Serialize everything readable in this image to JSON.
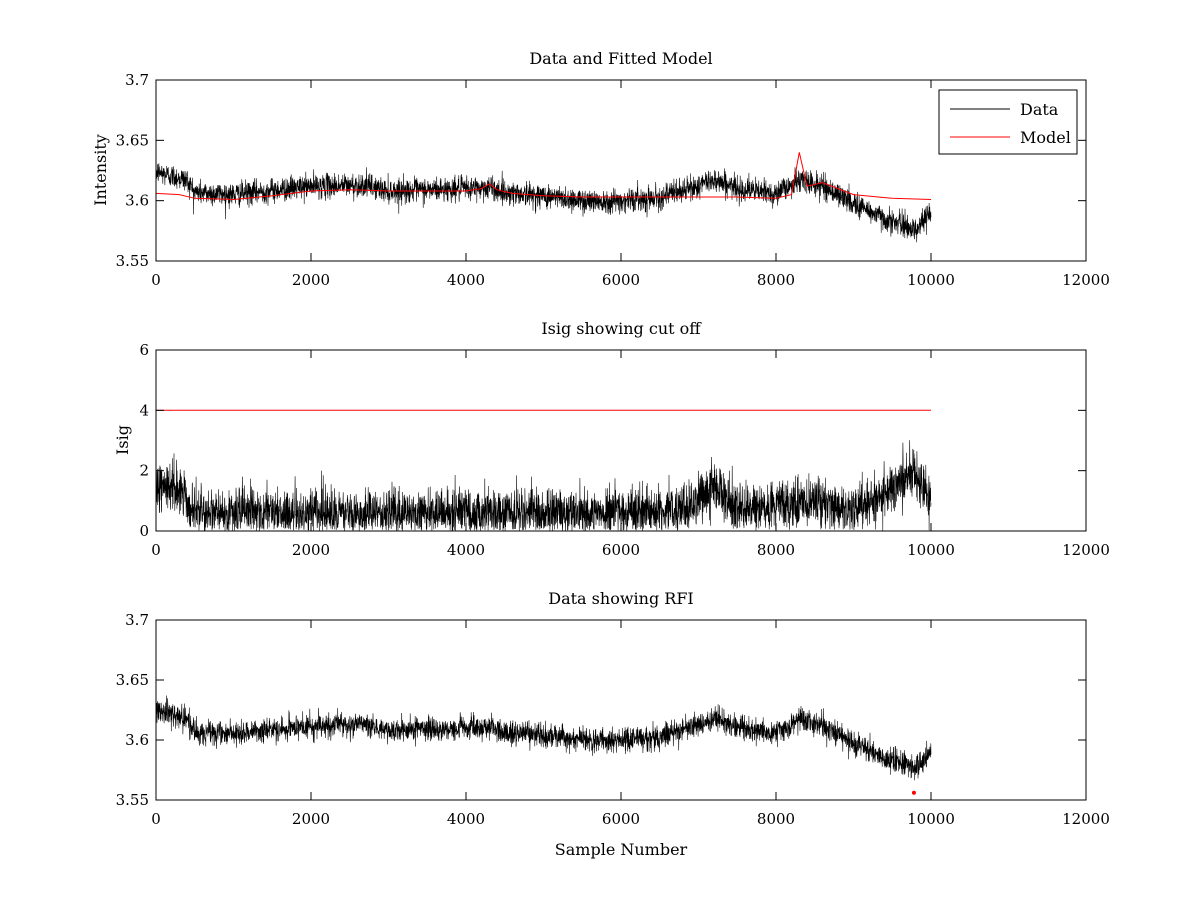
{
  "figure": {
    "background": "#ffffff"
  },
  "chart_data": [
    {
      "type": "line",
      "title": "Data and Fitted Model",
      "xlabel": "",
      "ylabel": "Intensity",
      "xlim": [
        0,
        12000
      ],
      "ylim": [
        3.55,
        3.7
      ],
      "xticks": [
        0,
        2000,
        4000,
        6000,
        8000,
        10000,
        12000
      ],
      "xtick_labels": [
        "0",
        "2000",
        "4000",
        "6000",
        "8000",
        "10000",
        "12000"
      ],
      "yticks": [
        3.55,
        3.6,
        3.65,
        3.7
      ],
      "ytick_labels": [
        "3.55",
        "3.6",
        "3.65",
        "3.7"
      ],
      "grid": false,
      "legend": {
        "placement": "top-right",
        "entries": [
          "Data",
          "Model"
        ]
      },
      "series": [
        {
          "name": "Data",
          "color": "#000000",
          "kind": "noisy",
          "x": [
            0,
            400,
            500,
            1000,
            2000,
            2700,
            3000,
            4000,
            4300,
            4500,
            5000,
            5500,
            6000,
            6500,
            7000,
            7200,
            7500,
            8000,
            8300,
            8600,
            9000,
            9400,
            9800,
            10000
          ],
          "center": [
            3.624,
            3.617,
            3.607,
            3.605,
            3.612,
            3.613,
            3.608,
            3.61,
            3.611,
            3.607,
            3.604,
            3.6,
            3.6,
            3.603,
            3.612,
            3.618,
            3.61,
            3.606,
            3.617,
            3.612,
            3.598,
            3.585,
            3.576,
            3.59
          ],
          "noise": 0.009
        },
        {
          "name": "Model",
          "color": "#ff0000",
          "kind": "line",
          "x": [
            0,
            300,
            500,
            1000,
            1500,
            2000,
            2500,
            3000,
            3500,
            4000,
            4200,
            4300,
            4400,
            4600,
            5000,
            5500,
            6000,
            6500,
            7000,
            7500,
            8000,
            8200,
            8300,
            8400,
            8600,
            8800,
            9000,
            9500,
            10000
          ],
          "y": [
            3.606,
            3.605,
            3.602,
            3.601,
            3.604,
            3.608,
            3.609,
            3.608,
            3.608,
            3.608,
            3.61,
            3.614,
            3.609,
            3.606,
            3.604,
            3.603,
            3.603,
            3.603,
            3.603,
            3.603,
            3.602,
            3.605,
            3.64,
            3.612,
            3.615,
            3.61,
            3.605,
            3.602,
            3.601
          ]
        }
      ]
    },
    {
      "type": "line",
      "title": "Isig showing cut off",
      "xlabel": "",
      "ylabel": "Isig",
      "xlim": [
        0,
        12000
      ],
      "ylim": [
        0,
        6
      ],
      "xticks": [
        0,
        2000,
        4000,
        6000,
        8000,
        10000,
        12000
      ],
      "xtick_labels": [
        "0",
        "2000",
        "4000",
        "6000",
        "8000",
        "10000",
        "12000"
      ],
      "yticks": [
        0,
        2,
        4,
        6
      ],
      "ytick_labels": [
        "0",
        "2",
        "4",
        "6"
      ],
      "grid": false,
      "series": [
        {
          "name": "Isig",
          "color": "#000000",
          "kind": "noisy-abs",
          "x": [
            0,
            350,
            450,
            1000,
            2000,
            3000,
            4000,
            5000,
            6000,
            6800,
            7200,
            7500,
            8000,
            8500,
            9000,
            9400,
            9800,
            10000
          ],
          "center": [
            1.5,
            1.3,
            0.6,
            0.6,
            0.6,
            0.55,
            0.6,
            0.6,
            0.6,
            0.65,
            1.5,
            0.8,
            0.8,
            0.9,
            0.7,
            1.2,
            1.9,
            0.9
          ],
          "noise": 0.75
        },
        {
          "name": "Cutoff",
          "color": "#ff0000",
          "kind": "line",
          "x": [
            0,
            10000
          ],
          "y": [
            4,
            4
          ]
        }
      ]
    },
    {
      "type": "line",
      "title": "Data showing RFI",
      "xlabel": "Sample Number",
      "ylabel": "",
      "xlim": [
        0,
        12000
      ],
      "ylim": [
        3.55,
        3.7
      ],
      "xticks": [
        0,
        2000,
        4000,
        6000,
        8000,
        10000,
        12000
      ],
      "xtick_labels": [
        "0",
        "2000",
        "4000",
        "6000",
        "8000",
        "10000",
        "12000"
      ],
      "yticks": [
        3.55,
        3.6,
        3.65,
        3.7
      ],
      "ytick_labels": [
        "3.55",
        "3.6",
        "3.65",
        "3.7"
      ],
      "grid": false,
      "series": [
        {
          "name": "Data",
          "color": "#000000",
          "kind": "noisy",
          "x": [
            0,
            400,
            500,
            1000,
            2000,
            2700,
            3000,
            4000,
            4300,
            4500,
            5000,
            5500,
            6000,
            6500,
            7000,
            7200,
            7500,
            8000,
            8300,
            8600,
            9000,
            9400,
            9800,
            10000
          ],
          "center": [
            3.624,
            3.617,
            3.607,
            3.605,
            3.612,
            3.613,
            3.608,
            3.61,
            3.611,
            3.607,
            3.604,
            3.6,
            3.6,
            3.603,
            3.612,
            3.618,
            3.61,
            3.606,
            3.617,
            3.612,
            3.598,
            3.585,
            3.576,
            3.59
          ],
          "noise": 0.009
        },
        {
          "name": "RFI",
          "color": "#ff0000",
          "kind": "points",
          "x": [
            9780
          ],
          "y": [
            3.556
          ]
        }
      ]
    }
  ]
}
